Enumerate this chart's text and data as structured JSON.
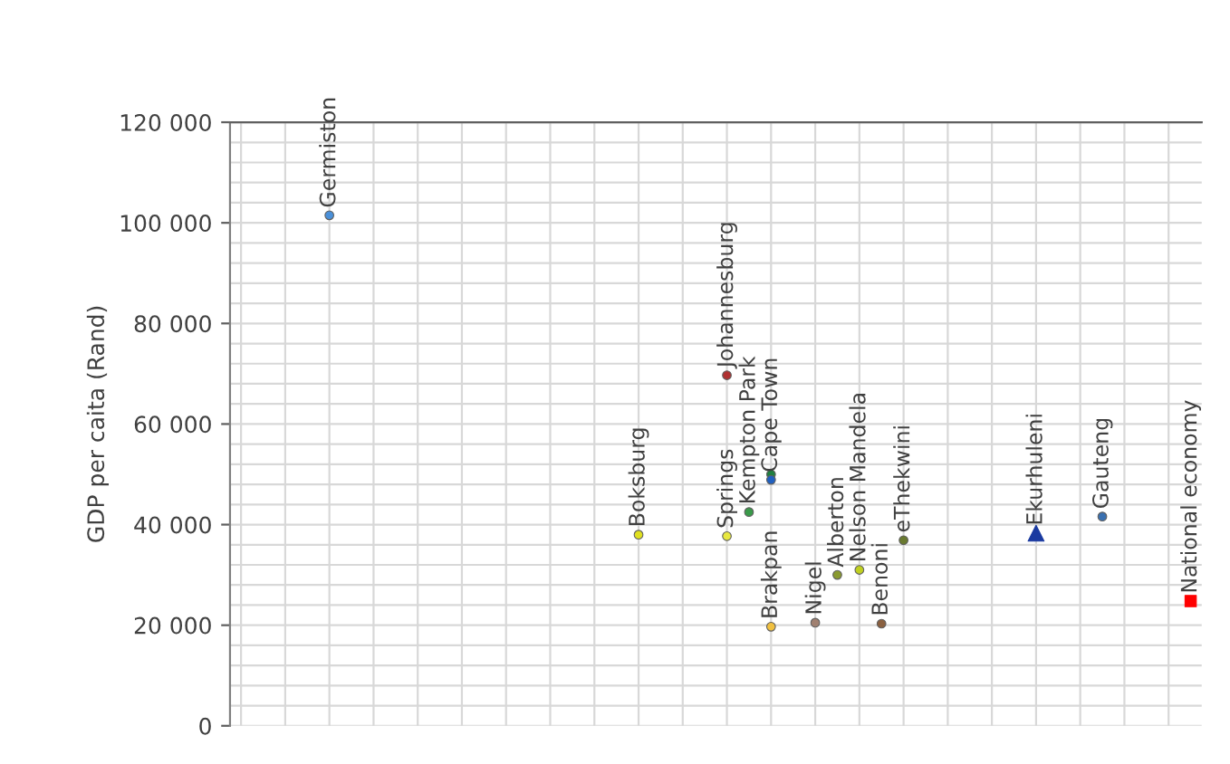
{
  "chart_data": {
    "type": "scatter",
    "ylabel": "GDP per caita (Rand)",
    "ylim": [
      0,
      120000
    ],
    "categories": [
      null,
      null,
      null,
      null,
      null,
      null,
      null,
      null,
      null,
      null,
      null,
      null,
      null,
      null,
      null,
      null,
      null,
      null,
      null,
      null,
      null,
      null,
      null,
      null,
      null,
      null,
      null,
      null,
      null,
      null,
      null,
      null,
      null,
      null,
      null,
      null,
      null,
      null,
      null,
      null,
      null,
      null,
      null,
      null
    ],
    "yticks": [
      {
        "value": 0,
        "label": "0"
      },
      {
        "value": 4000,
        "label": null
      },
      {
        "value": 8000,
        "label": null
      },
      {
        "value": 12000,
        "label": null
      },
      {
        "value": 16000,
        "label": null
      },
      {
        "value": 20000,
        "label": "20 000"
      },
      {
        "value": 24000,
        "label": null
      },
      {
        "value": 28000,
        "label": null
      },
      {
        "value": 32000,
        "label": null
      },
      {
        "value": 36000,
        "label": null
      },
      {
        "value": 40000,
        "label": "40 000"
      },
      {
        "value": 44000,
        "label": null
      },
      {
        "value": 48000,
        "label": null
      },
      {
        "value": 52000,
        "label": null
      },
      {
        "value": 56000,
        "label": null
      },
      {
        "value": 60000,
        "label": "60 000"
      },
      {
        "value": 64000,
        "label": null
      },
      {
        "value": 68000,
        "label": null
      },
      {
        "value": 72000,
        "label": null
      },
      {
        "value": 76000,
        "label": null
      },
      {
        "value": 80000,
        "label": "80 000"
      },
      {
        "value": 84000,
        "label": null
      },
      {
        "value": 88000,
        "label": null
      },
      {
        "value": 92000,
        "label": null
      },
      {
        "value": 96000,
        "label": null
      },
      {
        "value": 100000,
        "label": "100 000"
      },
      {
        "value": 104000,
        "label": null
      },
      {
        "value": 108000,
        "label": null
      },
      {
        "value": 112000,
        "label": null
      },
      {
        "value": 116000,
        "label": null
      },
      {
        "value": 120000,
        "label": "120 000"
      }
    ],
    "tick_labels": "y",
    "grid": true,
    "marker": "circle",
    "series": [
      {
        "name": "Germiston",
        "color": "#4a90d9",
        "values": [
          null,
          null,
          null,
          null,
          101500,
          null,
          null,
          null,
          null,
          null,
          null,
          null,
          null,
          null,
          null,
          null,
          null,
          null,
          null,
          null,
          null,
          null,
          null,
          null,
          null,
          null,
          null,
          null,
          null,
          null,
          null,
          null,
          null,
          null,
          null,
          null,
          null,
          null,
          null,
          null,
          null,
          null,
          null,
          null
        ]
      },
      {
        "name": "Boksburg",
        "color": "#e0e020",
        "values": [
          null,
          null,
          null,
          null,
          null,
          null,
          null,
          null,
          null,
          null,
          null,
          null,
          null,
          null,
          null,
          null,
          null,
          null,
          38000,
          null,
          null,
          null,
          null,
          null,
          null,
          null,
          null,
          null,
          null,
          null,
          null,
          null,
          null,
          null,
          null,
          null,
          null,
          null,
          null,
          null,
          null,
          null,
          null,
          null
        ]
      },
      {
        "name": "Springs",
        "color": "#e8e840",
        "values": [
          null,
          null,
          null,
          null,
          null,
          null,
          null,
          null,
          null,
          null,
          null,
          null,
          null,
          null,
          null,
          null,
          null,
          null,
          null,
          null,
          null,
          null,
          37700,
          null,
          null,
          null,
          null,
          null,
          null,
          null,
          null,
          null,
          null,
          null,
          null,
          null,
          null,
          null,
          null,
          null,
          null,
          null,
          null,
          null
        ]
      },
      {
        "name": "Johannesburg",
        "color": "#b03030",
        "values": [
          null,
          null,
          null,
          null,
          null,
          null,
          null,
          null,
          null,
          null,
          null,
          null,
          null,
          null,
          null,
          null,
          null,
          null,
          null,
          null,
          null,
          null,
          69700,
          null,
          null,
          null,
          null,
          null,
          null,
          null,
          null,
          null,
          null,
          null,
          null,
          null,
          null,
          null,
          null,
          null,
          null,
          null,
          null,
          null
        ]
      },
      {
        "name": "Kempton Park",
        "color": "#3a9a4a",
        "values": [
          null,
          null,
          null,
          null,
          null,
          null,
          null,
          null,
          null,
          null,
          null,
          null,
          null,
          null,
          null,
          null,
          null,
          null,
          null,
          null,
          null,
          null,
          null,
          42500,
          null,
          null,
          null,
          null,
          null,
          null,
          null,
          null,
          null,
          null,
          null,
          null,
          null,
          null,
          null,
          null,
          null,
          null,
          null,
          null
        ]
      },
      {
        "color": "#208040",
        "values": [
          null,
          null,
          null,
          null,
          null,
          null,
          null,
          null,
          null,
          null,
          null,
          null,
          null,
          null,
          null,
          null,
          null,
          null,
          null,
          null,
          null,
          null,
          null,
          null,
          50000,
          null,
          null,
          null,
          null,
          null,
          null,
          null,
          null,
          null,
          null,
          null,
          null,
          null,
          null,
          null,
          null,
          null,
          null,
          null
        ]
      },
      {
        "name": "Cape Town",
        "color": "#2060c0",
        "values": [
          null,
          null,
          null,
          null,
          null,
          null,
          null,
          null,
          null,
          null,
          null,
          null,
          null,
          null,
          null,
          null,
          null,
          null,
          null,
          null,
          null,
          null,
          null,
          null,
          48900,
          null,
          null,
          null,
          null,
          null,
          null,
          null,
          null,
          null,
          null,
          null,
          null,
          null,
          null,
          null,
          null,
          null,
          null,
          null
        ]
      },
      {
        "name": "Brakpan",
        "color": "#f0c040",
        "values": [
          null,
          null,
          null,
          null,
          null,
          null,
          null,
          null,
          null,
          null,
          null,
          null,
          null,
          null,
          null,
          null,
          null,
          null,
          null,
          null,
          null,
          null,
          null,
          null,
          19700,
          null,
          null,
          null,
          null,
          null,
          null,
          null,
          null,
          null,
          null,
          null,
          null,
          null,
          null,
          null,
          null,
          null,
          null,
          null
        ]
      },
      {
        "name": "Nigel",
        "color": "#a08070",
        "values": [
          null,
          null,
          null,
          null,
          null,
          null,
          null,
          null,
          null,
          null,
          null,
          null,
          null,
          null,
          null,
          null,
          null,
          null,
          null,
          null,
          null,
          null,
          null,
          null,
          null,
          null,
          20500,
          null,
          null,
          null,
          null,
          null,
          null,
          null,
          null,
          null,
          null,
          null,
          null,
          null,
          null,
          null,
          null,
          null
        ]
      },
      {
        "name": "Alberton",
        "color": "#8a9a30",
        "values": [
          null,
          null,
          null,
          null,
          null,
          null,
          null,
          null,
          null,
          null,
          null,
          null,
          null,
          null,
          null,
          null,
          null,
          null,
          null,
          null,
          null,
          null,
          null,
          null,
          null,
          null,
          null,
          30000,
          null,
          null,
          null,
          null,
          null,
          null,
          null,
          null,
          null,
          null,
          null,
          null,
          null,
          null,
          null,
          null
        ]
      },
      {
        "name": "Nelson Mandela",
        "color": "#c0d020",
        "values": [
          null,
          null,
          null,
          null,
          null,
          null,
          null,
          null,
          null,
          null,
          null,
          null,
          null,
          null,
          null,
          null,
          null,
          null,
          null,
          null,
          null,
          null,
          null,
          null,
          null,
          null,
          null,
          null,
          31000,
          null,
          null,
          null,
          null,
          null,
          null,
          null,
          null,
          null,
          null,
          null,
          null,
          null,
          null,
          null
        ]
      },
      {
        "name": "Benoni",
        "color": "#8a6040",
        "values": [
          null,
          null,
          null,
          null,
          null,
          null,
          null,
          null,
          null,
          null,
          null,
          null,
          null,
          null,
          null,
          null,
          null,
          null,
          null,
          null,
          null,
          null,
          null,
          null,
          null,
          null,
          null,
          null,
          null,
          20300,
          null,
          null,
          null,
          null,
          null,
          null,
          null,
          null,
          null,
          null,
          null,
          null,
          null,
          null
        ]
      },
      {
        "name": "eThekwini",
        "color": "#6a7a30",
        "values": [
          null,
          null,
          null,
          null,
          null,
          null,
          null,
          null,
          null,
          null,
          null,
          null,
          null,
          null,
          null,
          null,
          null,
          null,
          null,
          null,
          null,
          null,
          null,
          null,
          null,
          null,
          null,
          null,
          null,
          null,
          36900,
          null,
          null,
          null,
          null,
          null,
          null,
          null,
          null,
          null,
          null,
          null,
          null,
          null
        ]
      },
      {
        "name": "Ekurhuleni",
        "color": "#1a3aa0",
        "marker": "triangle",
        "values": [
          null,
          null,
          null,
          null,
          null,
          null,
          null,
          null,
          null,
          null,
          null,
          null,
          null,
          null,
          null,
          null,
          null,
          null,
          null,
          null,
          null,
          null,
          null,
          null,
          null,
          null,
          null,
          null,
          null,
          null,
          null,
          null,
          null,
          null,
          null,
          null,
          38300,
          null,
          null,
          null,
          null,
          null,
          null,
          null
        ]
      },
      {
        "name": "Gauteng",
        "color": "#3a70b0",
        "values": [
          null,
          null,
          null,
          null,
          null,
          null,
          null,
          null,
          null,
          null,
          null,
          null,
          null,
          null,
          null,
          null,
          null,
          null,
          null,
          null,
          null,
          null,
          null,
          null,
          null,
          null,
          null,
          null,
          null,
          null,
          null,
          null,
          null,
          null,
          null,
          null,
          null,
          null,
          null,
          41600,
          null,
          null,
          null,
          null
        ]
      },
      {
        "name": "National economy",
        "color": "#ff0000",
        "marker": "square",
        "values": [
          null,
          null,
          null,
          null,
          null,
          null,
          null,
          null,
          null,
          null,
          null,
          null,
          null,
          null,
          null,
          null,
          null,
          null,
          null,
          null,
          null,
          null,
          null,
          null,
          null,
          null,
          null,
          null,
          null,
          null,
          null,
          null,
          null,
          null,
          null,
          null,
          null,
          null,
          null,
          null,
          null,
          null,
          null,
          24800
        ]
      }
    ]
  }
}
